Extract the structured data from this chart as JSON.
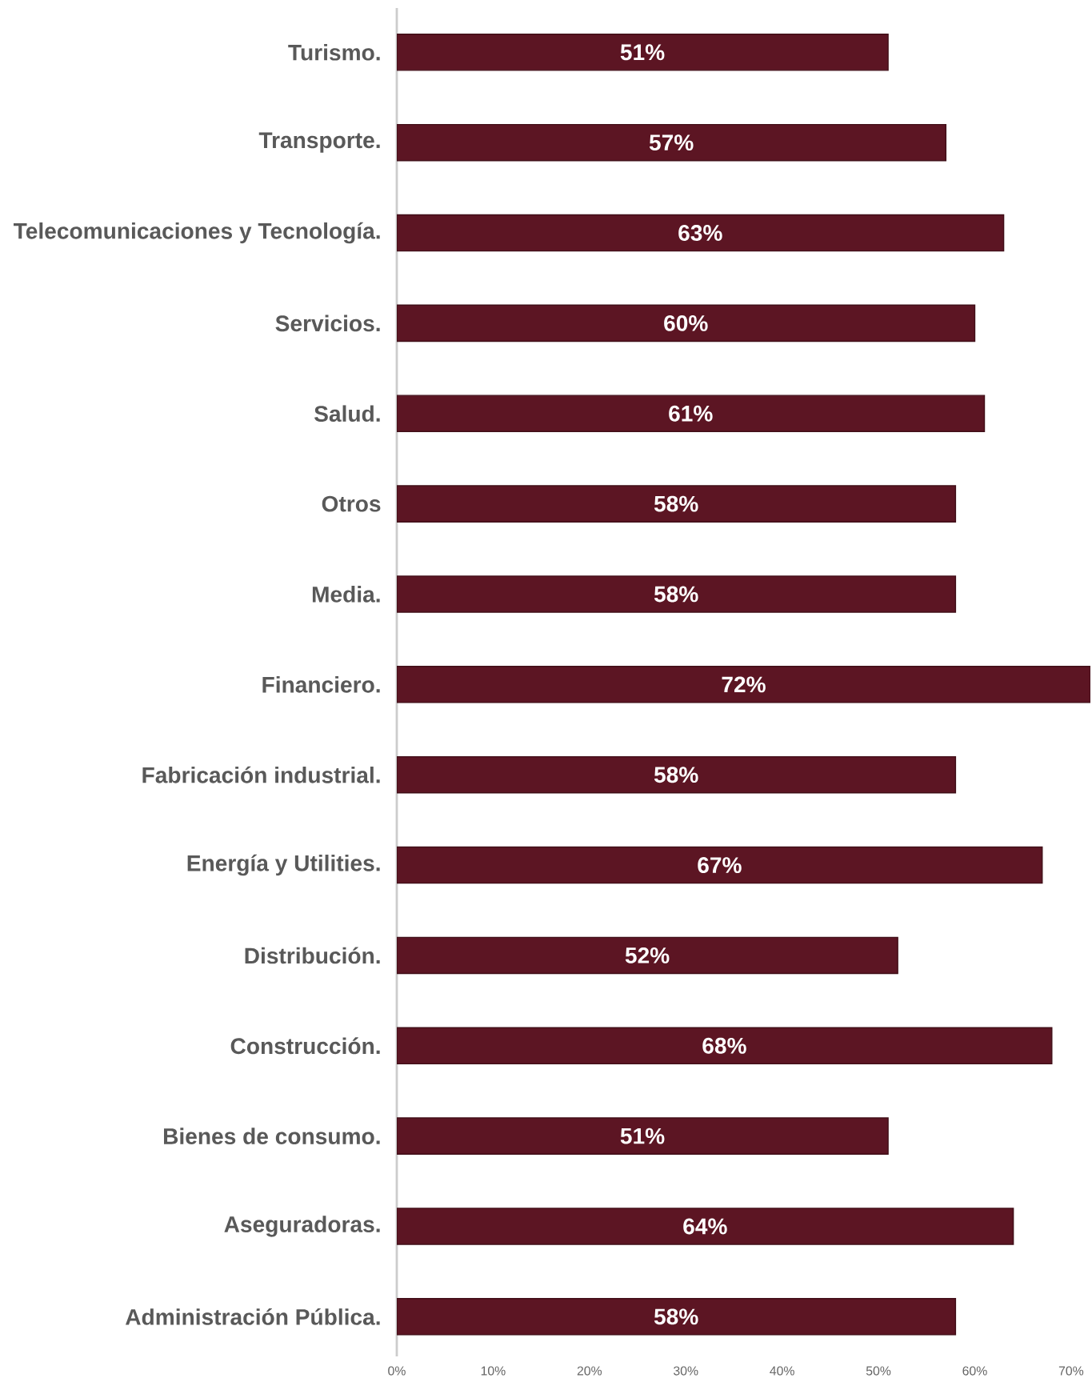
{
  "chart_data": {
    "type": "bar",
    "orientation": "horizontal",
    "categories": [
      "Turismo.",
      "Transporte.",
      "Telecomunicaciones y Tecnología.",
      "Servicios.",
      "Salud.",
      "Otros",
      "Media.",
      "Financiero.",
      "Fabricación industrial.",
      "Energía y Utilities.",
      "Distribución.",
      "Construcción.",
      "Bienes de consumo.",
      "Aseguradoras.",
      "Administración Pública."
    ],
    "values": [
      51,
      57,
      63,
      60,
      61,
      58,
      58,
      72,
      58,
      67,
      52,
      68,
      51,
      64,
      58
    ],
    "value_labels": [
      "51%",
      "57%",
      "63%",
      "60%",
      "61%",
      "58%",
      "58%",
      "72%",
      "58%",
      "67%",
      "52%",
      "68%",
      "51%",
      "64%",
      "58%"
    ],
    "color": "#5c1523",
    "xlim": [
      0,
      72
    ],
    "xticks": [
      {
        "value": 0,
        "label": "0%"
      },
      {
        "value": 10,
        "label": "10%"
      },
      {
        "value": 20,
        "label": "20%"
      },
      {
        "value": 30,
        "label": "30%"
      },
      {
        "value": 40,
        "label": "40%"
      },
      {
        "value": 50,
        "label": "50%"
      },
      {
        "value": 60,
        "label": "60%"
      },
      {
        "value": 70,
        "label": "70%"
      }
    ],
    "grid": false
  }
}
